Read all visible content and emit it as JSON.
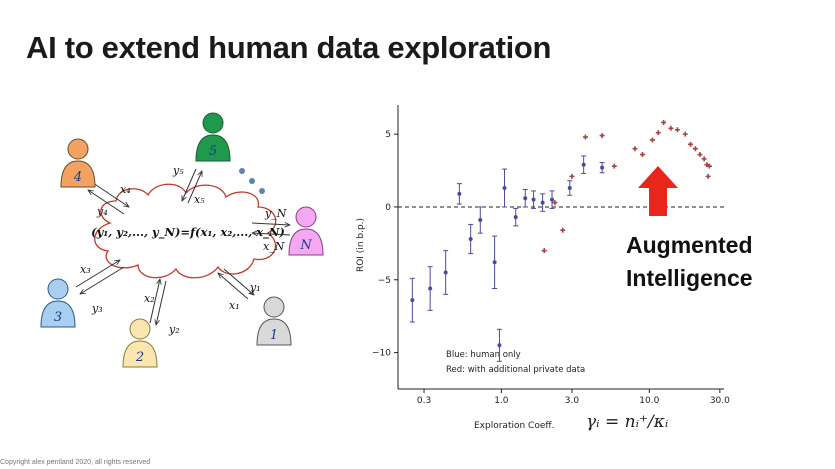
{
  "slide": {
    "title": "AI to extend human data exploration",
    "callout_line1": "Augmented",
    "callout_line2": "Intelligence",
    "copyright": "Copyright alex pentland 2020, all rights reserved",
    "arrow_color": "#e8261c"
  },
  "diagram": {
    "cloud_equation": "(y₁, y₂,..., y_N)=f(x₁, x₂,..., x_N)",
    "agents": [
      {
        "label": "4",
        "color": "#f4a261"
      },
      {
        "label": "5",
        "color": "#1f9a4c"
      },
      {
        "label": "N",
        "color": "#f4a8ef"
      },
      {
        "label": "3",
        "color": "#a9cff0"
      },
      {
        "label": "2",
        "color": "#fbe6b0"
      },
      {
        "label": "1",
        "color": "#d9d9d9"
      }
    ],
    "edge_labels": [
      {
        "x": "x₄",
        "y": "y₄"
      },
      {
        "x": "x₅",
        "y": "y₅"
      },
      {
        "x": "x_N",
        "y": "y_N"
      },
      {
        "x": "x₃",
        "y": "y₃"
      },
      {
        "x": "x₂",
        "y": "y₂"
      },
      {
        "x": "x₁",
        "y": "y₁"
      }
    ]
  },
  "chart_data": {
    "type": "scatter",
    "xscale": "log",
    "xlabel": "Exploration Coeff.",
    "xlabel_formula": "γᵢ = nᵢ⁺/κᵢ",
    "ylabel": "ROI (in b.p.)",
    "xlim": [
      0.2,
      32
    ],
    "ylim": [
      -12.5,
      7
    ],
    "xticks": [
      0.3,
      1.0,
      3.0,
      10.0,
      30.0
    ],
    "xtick_labels": [
      "0.3",
      "1.0",
      "3.0",
      "10.0",
      "30.0"
    ],
    "yticks": [
      5,
      0,
      -5,
      -10
    ],
    "ytick_labels": [
      "5",
      "0",
      "−5",
      "−10"
    ],
    "reference_line_y": 0,
    "legend": [
      "Blue: human only",
      "Red: with additional private data"
    ],
    "series": [
      {
        "name": "Blue: human only",
        "color": "#4b4b9a",
        "points": [
          {
            "x": 0.25,
            "y": -6.4,
            "err": 1.5
          },
          {
            "x": 0.33,
            "y": -5.6,
            "err": 1.5
          },
          {
            "x": 0.42,
            "y": -4.5,
            "err": 1.5
          },
          {
            "x": 0.52,
            "y": 0.9,
            "err": 0.7
          },
          {
            "x": 0.62,
            "y": -2.2,
            "err": 1.0
          },
          {
            "x": 0.72,
            "y": -0.9,
            "err": 0.9
          },
          {
            "x": 0.9,
            "y": -3.8,
            "err": 1.8
          },
          {
            "x": 0.97,
            "y": -9.5,
            "err": 1.1
          },
          {
            "x": 1.05,
            "y": 1.3,
            "err": 1.3
          },
          {
            "x": 1.25,
            "y": -0.7,
            "err": 0.6
          },
          {
            "x": 1.45,
            "y": 0.6,
            "err": 0.6
          },
          {
            "x": 1.65,
            "y": 0.5,
            "err": 0.6
          },
          {
            "x": 1.9,
            "y": 0.3,
            "err": 0.6
          },
          {
            "x": 2.2,
            "y": 0.5,
            "err": 0.6
          },
          {
            "x": 2.9,
            "y": 1.3,
            "err": 0.5
          },
          {
            "x": 3.6,
            "y": 2.9,
            "err": 0.6
          },
          {
            "x": 4.8,
            "y": 2.7,
            "err": 0.35
          }
        ]
      },
      {
        "name": "Red: with additional private data",
        "color": "#a04545",
        "points": [
          {
            "x": 1.95,
            "y": -3.0
          },
          {
            "x": 2.3,
            "y": 0.3
          },
          {
            "x": 2.6,
            "y": -1.6
          },
          {
            "x": 3.0,
            "y": 2.1
          },
          {
            "x": 3.7,
            "y": 4.8
          },
          {
            "x": 4.8,
            "y": 4.9
          },
          {
            "x": 5.8,
            "y": 2.8
          },
          {
            "x": 8.0,
            "y": 4.0
          },
          {
            "x": 9.0,
            "y": 3.6
          },
          {
            "x": 10.5,
            "y": 4.6
          },
          {
            "x": 11.5,
            "y": 5.1
          },
          {
            "x": 12.5,
            "y": 5.8
          },
          {
            "x": 14.0,
            "y": 5.4
          },
          {
            "x": 15.5,
            "y": 5.3
          },
          {
            "x": 17.5,
            "y": 5.0
          },
          {
            "x": 19.0,
            "y": 4.3
          },
          {
            "x": 20.5,
            "y": 4.0
          },
          {
            "x": 22.0,
            "y": 3.6
          },
          {
            "x": 23.5,
            "y": 3.3
          },
          {
            "x": 24.5,
            "y": 2.9
          },
          {
            "x": 25.0,
            "y": 2.1
          },
          {
            "x": 25.5,
            "y": 2.8
          }
        ]
      }
    ]
  }
}
